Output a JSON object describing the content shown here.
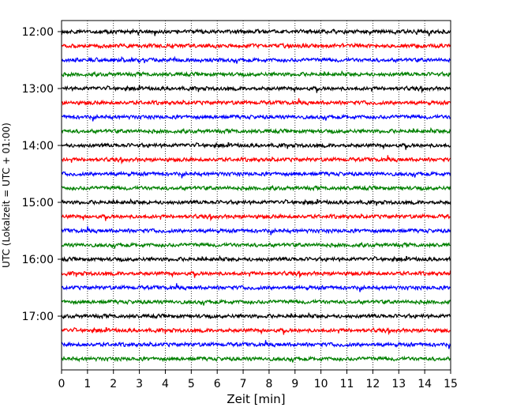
{
  "chart_data": {
    "type": "line",
    "title": "",
    "xlabel": "Zeit  [min]",
    "ylabel": "UTC (Lokalzeit = UTC + 01:00)",
    "xlim": [
      0,
      15
    ],
    "xticks": [
      "0",
      "1",
      "2",
      "3",
      "4",
      "5",
      "6",
      "7",
      "8",
      "9",
      "10",
      "11",
      "12",
      "13",
      "14",
      "15"
    ],
    "yticks": [
      "12:00",
      "13:00",
      "14:00",
      "15:00",
      "16:00",
      "17:00"
    ],
    "grid": "vertical dotted at each minute",
    "trace_interval_min": 15,
    "first_trace": "12:00",
    "trace_count": 24,
    "trace_colors": [
      "#000000",
      "#ff0000",
      "#0000ff",
      "#008000"
    ]
  }
}
